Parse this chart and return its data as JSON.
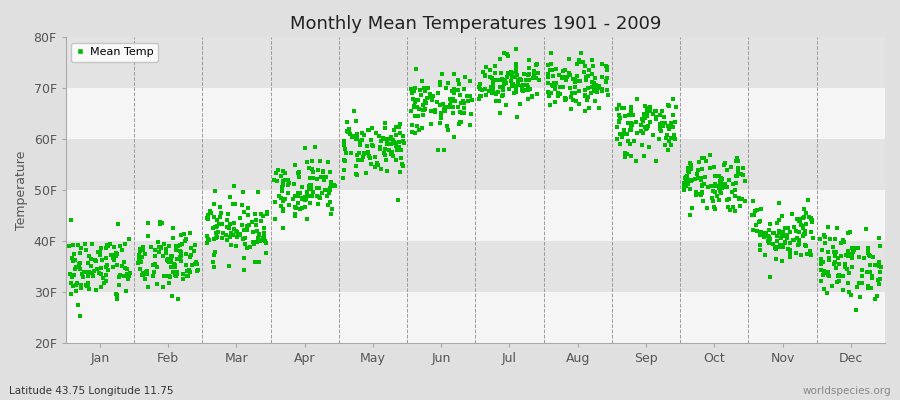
{
  "title": "Monthly Mean Temperatures 1901 - 2009",
  "ylabel": "Temperature",
  "xlabel_bottom_left": "Latitude 43.75 Longitude 11.75",
  "xlabel_bottom_right": "worldspecies.org",
  "legend_label": "Mean Temp",
  "marker_color": "#00bb00",
  "figure_bg_color": "#e0e0e0",
  "plot_bg_color": "#ebebeb",
  "band_color_light": "#f5f5f5",
  "band_color_dark": "#e3e3e3",
  "ylim": [
    20,
    80
  ],
  "yticks": [
    20,
    30,
    40,
    50,
    60,
    70,
    80
  ],
  "ytick_labels": [
    "20F",
    "30F",
    "40F",
    "50F",
    "60F",
    "70F",
    "80F"
  ],
  "month_names": [
    "Jan",
    "Feb",
    "Mar",
    "Apr",
    "May",
    "Jun",
    "Jul",
    "Aug",
    "Sep",
    "Oct",
    "Nov",
    "Dec"
  ],
  "monthly_mean_F": [
    34.5,
    36.0,
    42.5,
    50.5,
    58.5,
    66.5,
    71.5,
    70.5,
    62.5,
    51.5,
    41.5,
    35.5
  ],
  "monthly_std_F": [
    3.5,
    3.5,
    3.0,
    3.0,
    3.0,
    3.0,
    2.5,
    2.5,
    3.0,
    3.0,
    3.0,
    3.5
  ],
  "n_years": 109,
  "seed": 42
}
